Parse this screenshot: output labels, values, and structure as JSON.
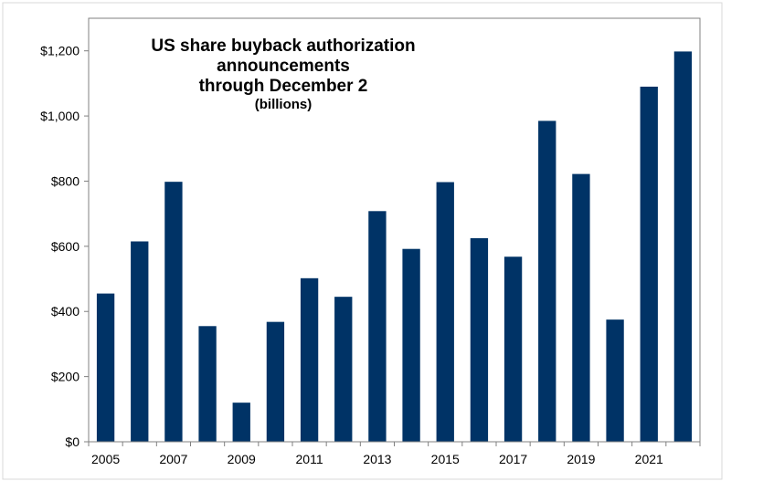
{
  "chart_data": {
    "type": "bar",
    "title": [
      "US share buyback authorization",
      "announcements",
      "through December 2"
    ],
    "subtitle": "(billions)",
    "xlabel": "",
    "ylabel": "",
    "categories": [
      "2005",
      "2006",
      "2007",
      "2008",
      "2009",
      "2010",
      "2011",
      "2012",
      "2013",
      "2014",
      "2015",
      "2016",
      "2017",
      "2018",
      "2019",
      "2020",
      "2021",
      "2022"
    ],
    "values": [
      455,
      615,
      798,
      355,
      120,
      368,
      502,
      445,
      708,
      592,
      797,
      625,
      568,
      985,
      822,
      375,
      1090,
      1198
    ],
    "x_tick_labels": [
      "2005",
      "2007",
      "2009",
      "2011",
      "2013",
      "2015",
      "2017",
      "2019",
      "2021"
    ],
    "y_tick_labels": [
      "$0",
      "$200",
      "$400",
      "$600",
      "$800",
      "$1,000",
      "$1,200"
    ],
    "y_ticks": [
      0,
      200,
      400,
      600,
      800,
      1000,
      1200
    ],
    "ylim": [
      0,
      1300
    ],
    "grid": false,
    "legend": "none",
    "bar_color": "#003366"
  }
}
